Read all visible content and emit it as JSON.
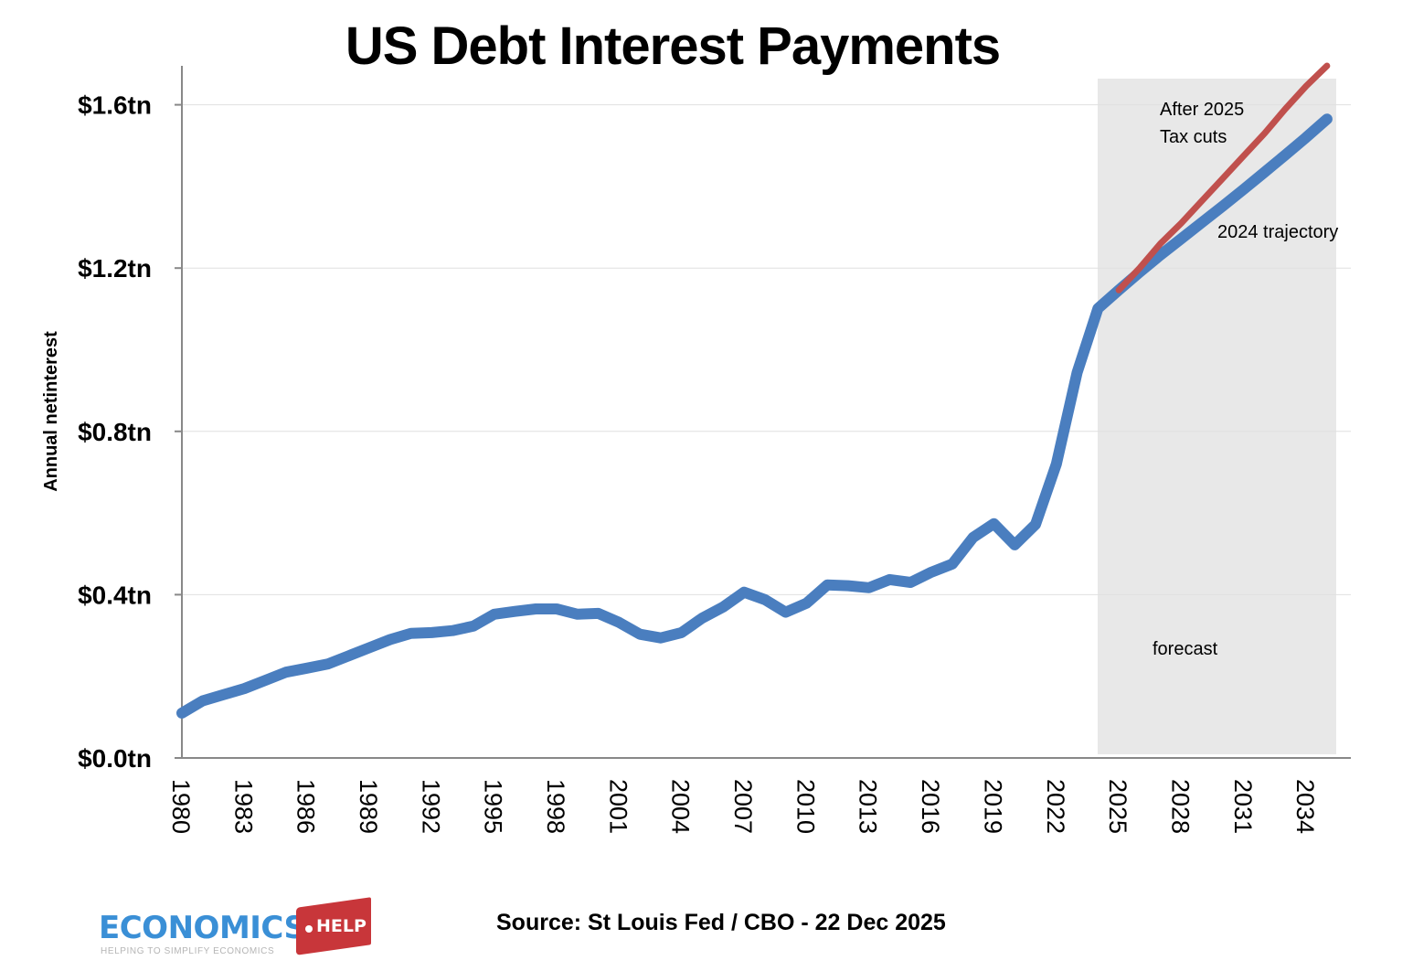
{
  "title": "US Debt Interest Payments",
  "y_axis_label": "Annual netinterest",
  "y_ticks": [
    "$0.0tn",
    "$0.4tn",
    "$0.8tn",
    "$1.2tn",
    "$1.6tn"
  ],
  "x_ticks": [
    "1980",
    "1983",
    "1986",
    "1989",
    "1992",
    "1995",
    "1998",
    "2001",
    "2004",
    "2007",
    "2010",
    "2013",
    "2016",
    "2019",
    "2022",
    "2025",
    "2028",
    "2031",
    "2034"
  ],
  "annotations": {
    "tax_cuts_line1": "After 2025",
    "tax_cuts_line2": "Tax cuts",
    "trajectory": "2024 trajectory",
    "forecast": "forecast"
  },
  "source": "Source: St Louis Fed / CBO - 22 Dec 2025",
  "logo": {
    "main": "ECONOMICS",
    "tag": "HELP",
    "tagline": "HELPING TO SIMPLIFY ECONOMICS"
  },
  "colors": {
    "historical_line": "#4a7ebf",
    "tax_cuts_line": "#c0504d",
    "forecast_shade": "#e8e8e8",
    "gridline": "#e0e0e0",
    "axis": "#888888"
  },
  "chart_data": {
    "type": "line",
    "title": "US Debt Interest Payments",
    "xlabel": "",
    "ylabel": "Annual netinterest",
    "ylim": [
      0,
      1.7
    ],
    "y_unit": "$ trillion",
    "grid": true,
    "forecast_region": [
      2024,
      2035
    ],
    "x": [
      1980,
      1981,
      1982,
      1983,
      1984,
      1985,
      1986,
      1987,
      1988,
      1989,
      1990,
      1991,
      1992,
      1993,
      1994,
      1995,
      1996,
      1997,
      1998,
      1999,
      2000,
      2001,
      2002,
      2003,
      2004,
      2005,
      2006,
      2007,
      2008,
      2009,
      2010,
      2011,
      2012,
      2013,
      2014,
      2015,
      2016,
      2017,
      2018,
      2019,
      2020,
      2021,
      2022,
      2023,
      2024,
      2025,
      2026,
      2027,
      2028,
      2029,
      2030,
      2031,
      2032,
      2033,
      2034,
      2035
    ],
    "series": [
      {
        "name": "2024 trajectory",
        "color": "#4a7ebf",
        "values": [
          0.11,
          0.14,
          0.155,
          0.17,
          0.19,
          0.21,
          0.22,
          0.23,
          0.25,
          0.27,
          0.29,
          0.305,
          0.307,
          0.312,
          0.323,
          0.352,
          0.359,
          0.365,
          0.365,
          0.352,
          0.354,
          0.332,
          0.303,
          0.294,
          0.307,
          0.343,
          0.37,
          0.406,
          0.388,
          0.357,
          0.379,
          0.424,
          0.422,
          0.417,
          0.437,
          0.43,
          0.455,
          0.475,
          0.54,
          0.574,
          0.522,
          0.572,
          0.72,
          0.944,
          1.101,
          1.146,
          1.19,
          1.232,
          1.272,
          1.312,
          1.352,
          1.393,
          1.435,
          1.477,
          1.52,
          1.565
        ]
      },
      {
        "name": "After 2025 Tax cuts",
        "color": "#c0504d",
        "x": [
          2025,
          2026,
          2027,
          2028,
          2029,
          2030,
          2031,
          2032,
          2033,
          2034,
          2035
        ],
        "values": [
          1.146,
          1.2,
          1.26,
          1.31,
          1.365,
          1.42,
          1.475,
          1.53,
          1.59,
          1.646,
          1.7
        ]
      }
    ]
  }
}
